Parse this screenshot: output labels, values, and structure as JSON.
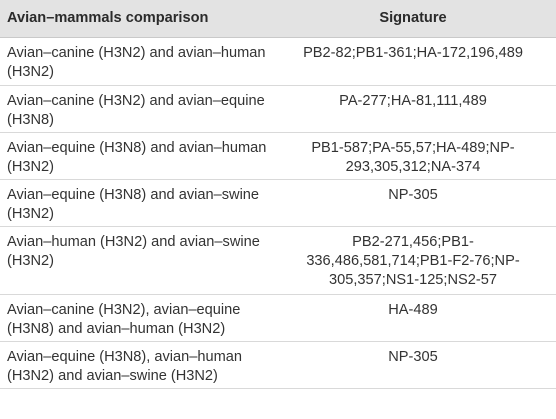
{
  "table": {
    "headers": {
      "comparison": "Avian–mammals comparison",
      "signature": "Signature"
    },
    "rows": [
      {
        "comparison": "Avian–canine (H3N2) and avian–human (H3N2)",
        "signature": "PB2-82;PB1-361;HA-172,196,489"
      },
      {
        "comparison": "Avian–canine (H3N2) and avian–equine (H3N8)",
        "signature": "PA-277;HA-81,111,489"
      },
      {
        "comparison": "Avian–equine (H3N8) and avian–human (H3N2)",
        "signature": "PB1-587;PA-55,57;HA-489;NP-293,305,312;NA-374"
      },
      {
        "comparison": "Avian–equine (H3N8) and avian–swine (H3N2)",
        "signature": "NP-305"
      },
      {
        "comparison": "Avian–human (H3N2) and avian–swine (H3N2)",
        "signature": "PB2-271,456;PB1-336,486,581,714;PB1-F2-76;NP-305,357;NS1-125;NS2-57"
      },
      {
        "comparison": "Avian–canine (H3N2), avian–equine (H3N8) and avian–human (H3N2)",
        "signature": "HA-489"
      },
      {
        "comparison": "Avian–equine (H3N8), avian–human (H3N2) and avian–swine (H3N2)",
        "signature": "NP-305"
      }
    ]
  }
}
